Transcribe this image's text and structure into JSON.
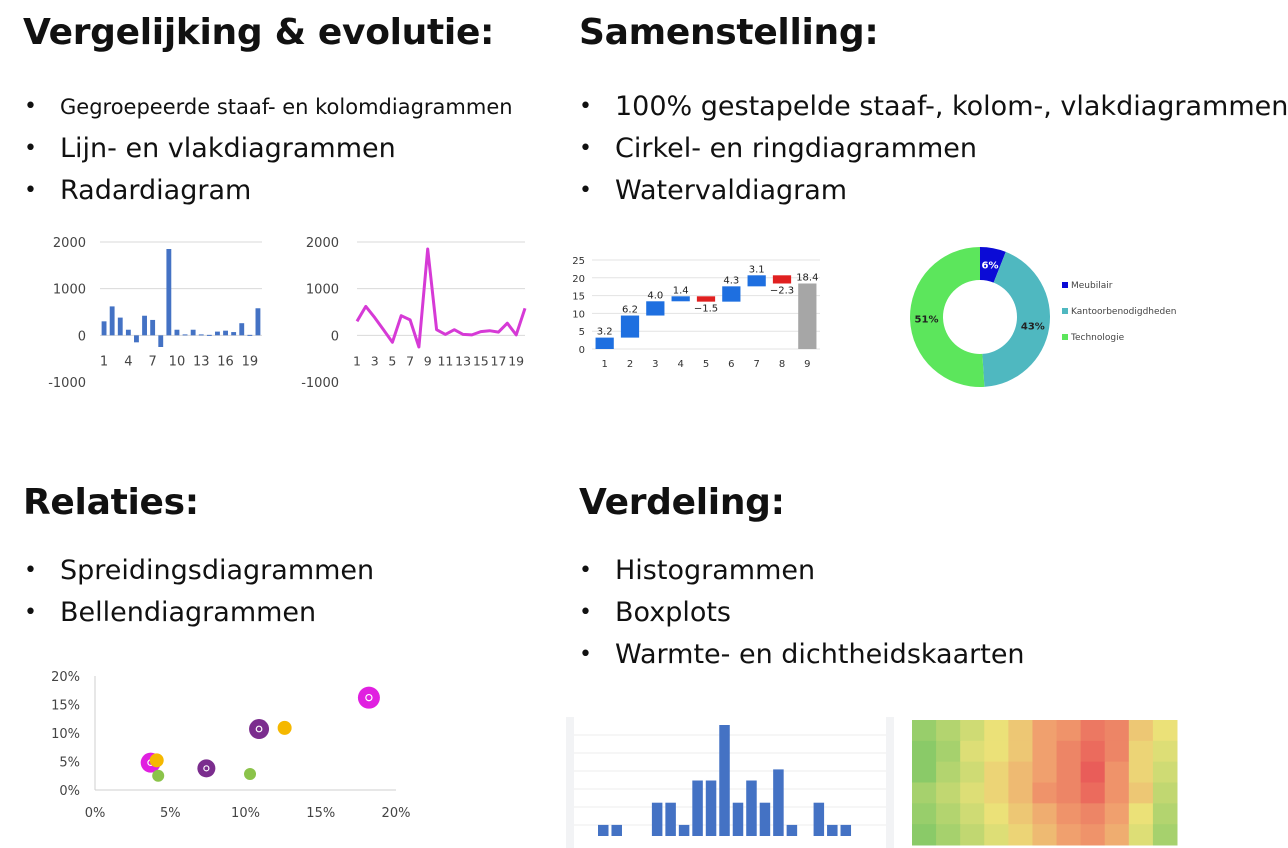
{
  "sections": {
    "comparison": {
      "title": "Vergelijking & evolutie:",
      "items": [
        "Gegroepeerde staaf- en kolomdiagrammen",
        "Lijn- en vlakdiagrammen",
        "Radardiagram"
      ]
    },
    "composition": {
      "title": "Samenstelling:",
      "items": [
        "100% gestapelde staaf-, kolom-, vlakdiagrammen",
        "Cirkel- en ringdiagrammen",
        "Watervaldiagram"
      ]
    },
    "relations": {
      "title": "Relaties:",
      "items": [
        "Spreidingsdiagrammen",
        "Bellendiagrammen"
      ]
    },
    "distribution": {
      "title": "Verdeling:",
      "items": [
        "Histogrammen",
        "Boxplots",
        "Warmte- en dichtheidskaarten"
      ]
    }
  },
  "colors": {
    "bar": "#4472c4",
    "line": "#d63ad6",
    "waterfall_up": "#1e6fe0",
    "waterfall_down": "#e02020",
    "waterfall_total": "#a6a6a6",
    "donut": [
      "#0b0bd6",
      "#4fb8c0",
      "#5ce65c"
    ],
    "bubbles": [
      "#e020e0",
      "#f5b800",
      "#7b2d8e",
      "#8bc34a"
    ]
  },
  "chart_data": [
    {
      "type": "bar",
      "x": [
        1,
        2,
        3,
        4,
        5,
        6,
        7,
        8,
        9,
        10,
        11,
        12,
        13,
        14,
        15,
        16,
        17,
        18,
        19,
        20
      ],
      "values": [
        300,
        620,
        380,
        120,
        -150,
        420,
        330,
        -250,
        1850,
        120,
        20,
        120,
        20,
        10,
        80,
        100,
        70,
        260,
        10,
        580
      ],
      "ylim": [
        -1000,
        2000
      ],
      "yticks": [
        "2000",
        "1000",
        "0",
        "-1000"
      ],
      "xticks": [
        "1",
        "4",
        "7",
        "10",
        "13",
        "16",
        "19"
      ]
    },
    {
      "type": "line",
      "x": [
        1,
        2,
        3,
        4,
        5,
        6,
        7,
        8,
        9,
        10,
        11,
        12,
        13,
        14,
        15,
        16,
        17,
        18,
        19,
        20
      ],
      "values": [
        300,
        620,
        380,
        120,
        -150,
        420,
        330,
        -250,
        1850,
        120,
        20,
        120,
        20,
        10,
        80,
        100,
        70,
        260,
        10,
        580
      ],
      "ylim": [
        -1000,
        2000
      ],
      "yticks": [
        "2000",
        "1000",
        "0",
        "-1000"
      ],
      "xticks": [
        "1",
        "3",
        "5",
        "7",
        "9",
        "11",
        "13",
        "15",
        "17",
        "19"
      ]
    },
    {
      "type": "bar",
      "subtype": "waterfall",
      "categories": [
        "1",
        "2",
        "3",
        "4",
        "5",
        "6",
        "7",
        "8",
        "9"
      ],
      "values": [
        3.2,
        6.2,
        4.0,
        1.4,
        -1.5,
        4.3,
        3.1,
        -2.3,
        18.4
      ],
      "labels": [
        "3.2",
        "6.2",
        "4.0",
        "1.4",
        "−1.5",
        "4.3",
        "3.1",
        "−2.3",
        "18.4"
      ],
      "total_index": 8,
      "ylim": [
        0,
        25
      ],
      "yticks": [
        "25",
        "20",
        "15",
        "10",
        "5",
        "0"
      ]
    },
    {
      "type": "pie",
      "subtype": "donut",
      "labels": [
        "Meubilair",
        "Kantoorbenodigdheden",
        "Technologie"
      ],
      "values": [
        6,
        43,
        51
      ],
      "value_labels": [
        "6%",
        "43%",
        "51%"
      ]
    },
    {
      "type": "scatter",
      "subtype": "bubble",
      "points": [
        {
          "x": 3.7,
          "y": 4.8,
          "color": 0,
          "size": 10
        },
        {
          "x": 4.1,
          "y": 5.2,
          "color": 1,
          "size": 7
        },
        {
          "x": 4.2,
          "y": 2.5,
          "color": 3,
          "size": 6
        },
        {
          "x": 7.4,
          "y": 3.8,
          "color": 2,
          "size": 9
        },
        {
          "x": 10.3,
          "y": 2.8,
          "color": 3,
          "size": 6
        },
        {
          "x": 10.9,
          "y": 10.7,
          "color": 2,
          "size": 10
        },
        {
          "x": 12.6,
          "y": 10.9,
          "color": 1,
          "size": 7
        },
        {
          "x": 18.2,
          "y": 16.2,
          "color": 0,
          "size": 11
        }
      ],
      "xlim": [
        0,
        20
      ],
      "ylim": [
        0,
        20
      ],
      "xticks": [
        "0%",
        "5%",
        "10%",
        "15%",
        "20%"
      ],
      "yticks": [
        "20%",
        "15%",
        "10%",
        "5%",
        "0%"
      ]
    },
    {
      "type": "bar",
      "subtype": "histogram",
      "values": [
        1,
        1,
        0,
        0,
        3,
        3,
        1,
        5,
        5,
        10,
        3,
        5,
        3,
        6,
        1,
        0,
        3,
        1,
        1
      ]
    },
    {
      "type": "heatmap",
      "rows": 6,
      "cols": 11,
      "values": [
        [
          0.15,
          0.25,
          0.35,
          0.45,
          0.55,
          0.7,
          0.75,
          0.85,
          0.8,
          0.55,
          0.45
        ],
        [
          0.1,
          0.2,
          0.4,
          0.45,
          0.55,
          0.7,
          0.8,
          0.9,
          0.8,
          0.5,
          0.4
        ],
        [
          0.1,
          0.25,
          0.35,
          0.5,
          0.6,
          0.7,
          0.8,
          0.95,
          0.75,
          0.5,
          0.35
        ],
        [
          0.2,
          0.3,
          0.4,
          0.5,
          0.6,
          0.75,
          0.8,
          0.9,
          0.75,
          0.55,
          0.3
        ],
        [
          0.15,
          0.25,
          0.35,
          0.45,
          0.55,
          0.65,
          0.75,
          0.8,
          0.7,
          0.45,
          0.25
        ],
        [
          0.1,
          0.2,
          0.3,
          0.4,
          0.5,
          0.6,
          0.7,
          0.75,
          0.65,
          0.4,
          0.2
        ]
      ]
    }
  ]
}
